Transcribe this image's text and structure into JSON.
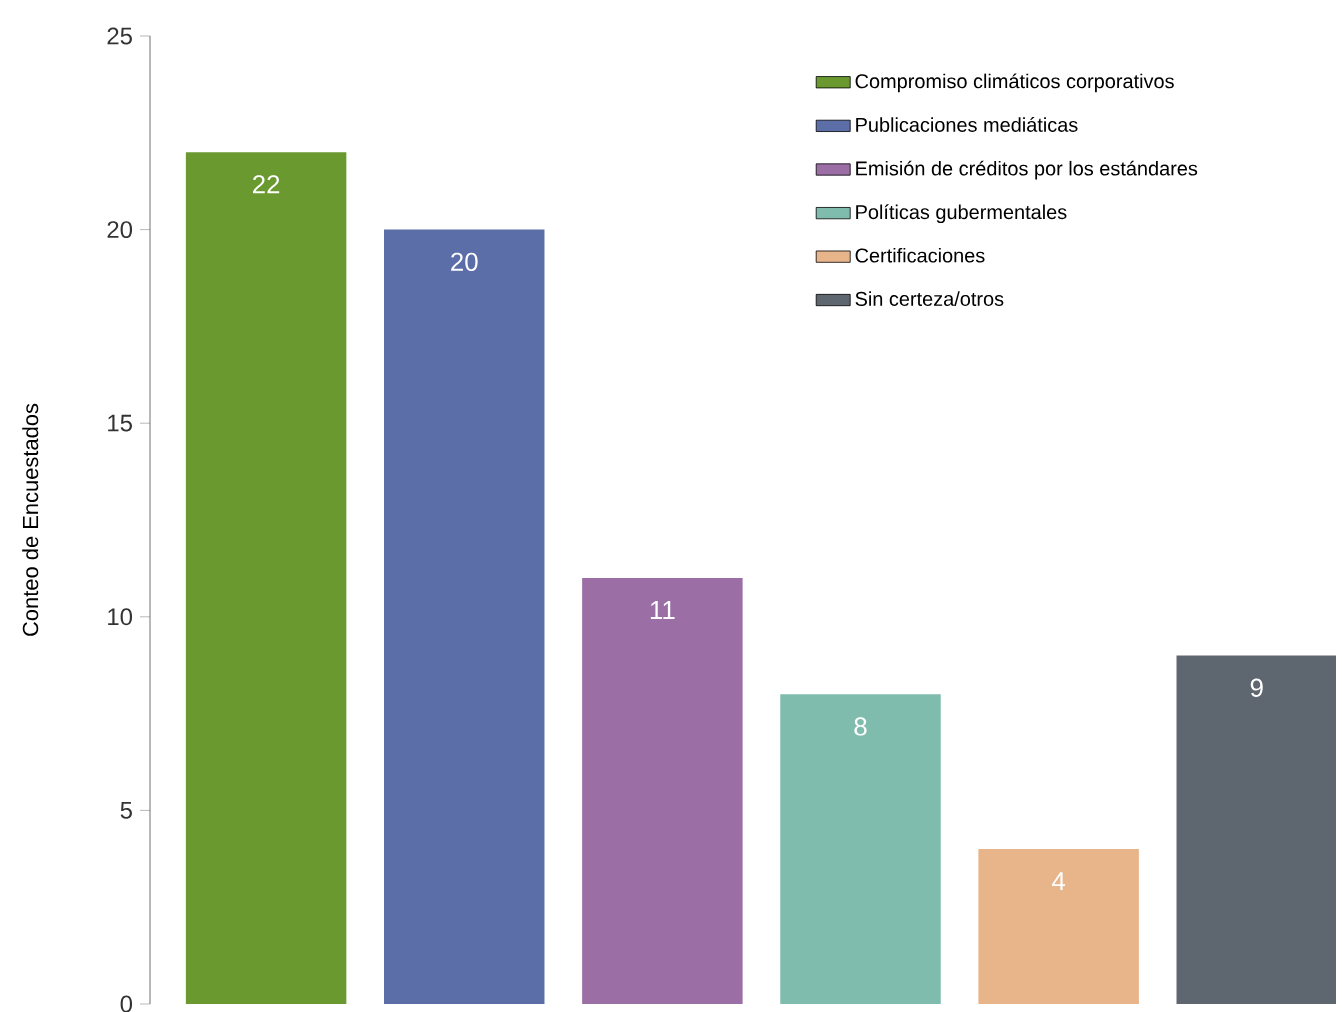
{
  "chart_data": {
    "type": "bar",
    "ylabel": "Conteo de Encuestados",
    "categories": [
      null,
      null,
      null,
      null,
      null,
      null
    ],
    "series": [
      {
        "name": "Compromiso climáticos corporativos",
        "color": "#6a9a2f",
        "values": [
          22,
          null,
          null,
          null,
          null,
          null
        ]
      },
      {
        "name": "Publicaciones mediáticas",
        "color": "#5b6ea8",
        "values": [
          null,
          20,
          null,
          null,
          null,
          null
        ]
      },
      {
        "name": "Emisión de créditos por los estándares",
        "color": "#9b6fa6",
        "values": [
          null,
          null,
          11,
          null,
          null,
          null
        ]
      },
      {
        "name": "Políticas gubermentales",
        "color": "#80bcad",
        "values": [
          null,
          null,
          null,
          8,
          null,
          null
        ]
      },
      {
        "name": "Certificaciones",
        "color": "#e8b48a",
        "values": [
          null,
          null,
          null,
          null,
          4,
          null
        ]
      },
      {
        "name": "Sin certeza/otros",
        "color": "#5e666f",
        "values": [
          null,
          null,
          null,
          null,
          null,
          9
        ]
      }
    ],
    "ylim": [
      0,
      25
    ],
    "yticks": [
      0,
      5,
      10,
      15,
      20,
      25
    ],
    "stacked": true,
    "data_labels": true,
    "legend": "top right",
    "tick_labels": "y"
  }
}
